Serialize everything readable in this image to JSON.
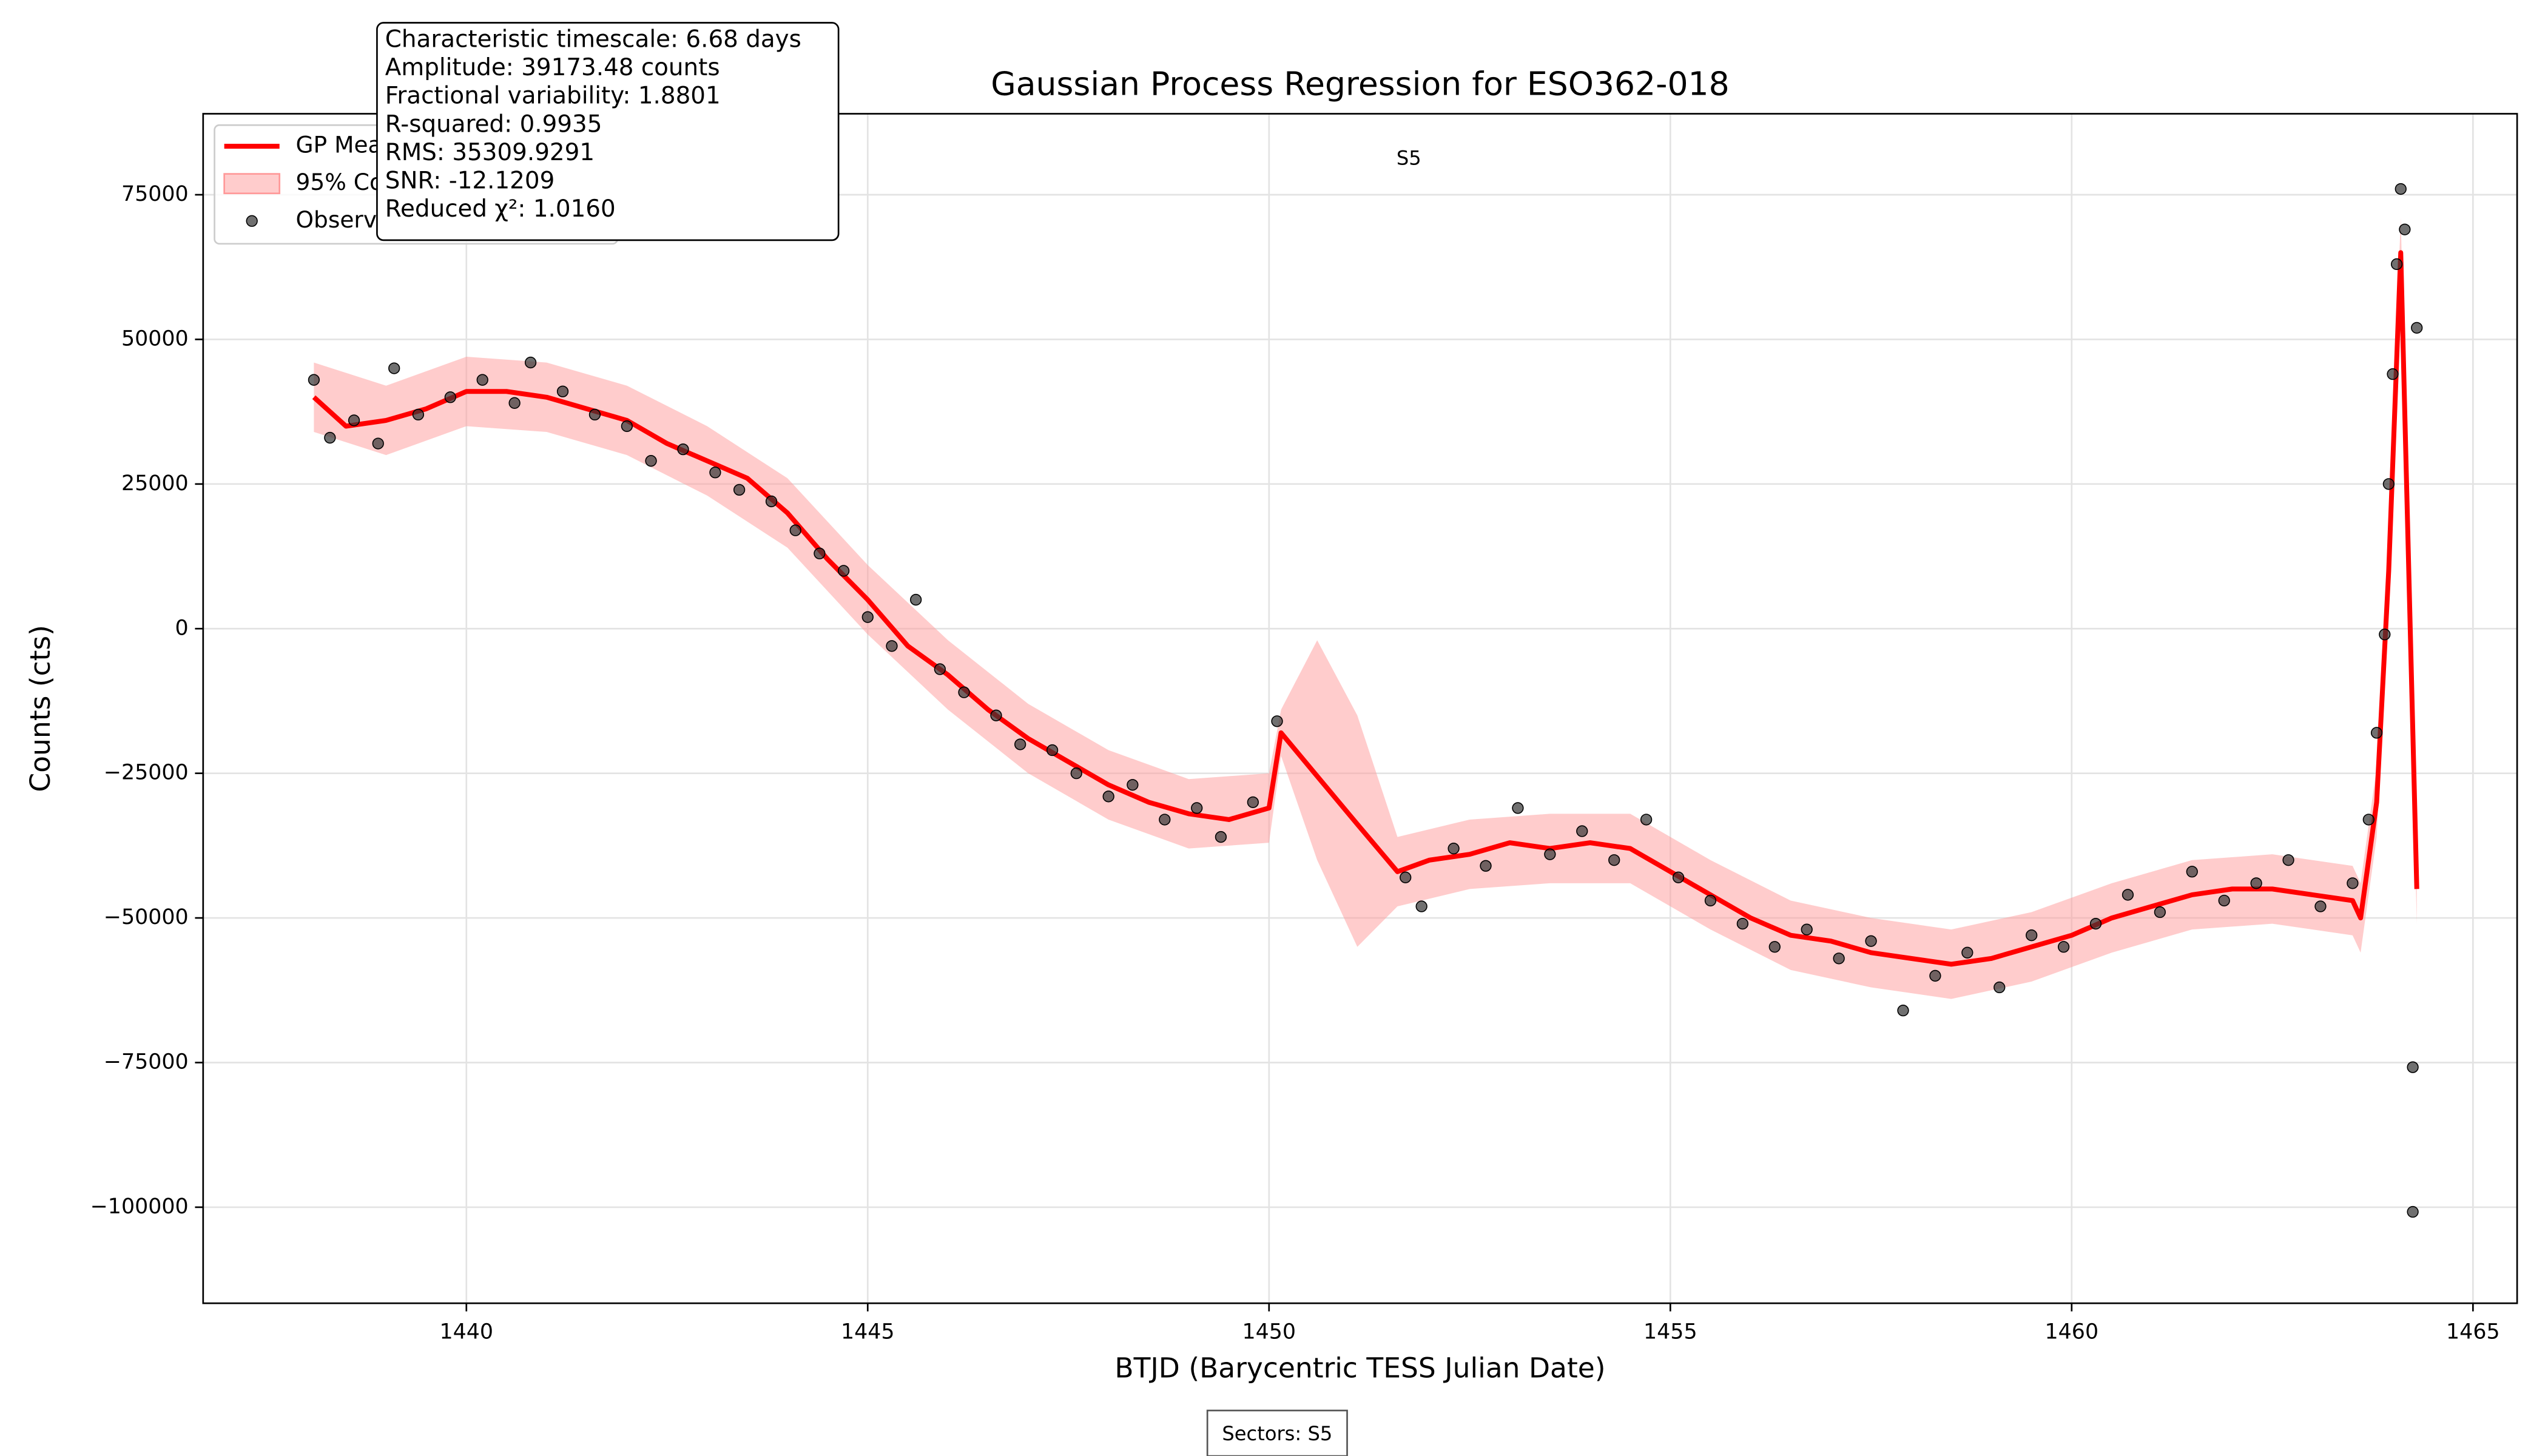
{
  "chart_data": {
    "type": "scatter",
    "title": "Gaussian Process Regression for ESO362-018",
    "x_label": "BTJD (Barycentric TESS Julian Date)",
    "y_label": "Counts (cts)",
    "xlim": [
      1436.72,
      1465.55
    ],
    "ylim": [
      -116600,
      89000
    ],
    "xticks": [
      1440,
      1445,
      1450,
      1455,
      1460,
      1465
    ],
    "yticks": [
      {
        "value": -100000,
        "label": "−100000"
      },
      {
        "value": -75000,
        "label": "−75000"
      },
      {
        "value": -50000,
        "label": "−50000"
      },
      {
        "value": -25000,
        "label": "−25000"
      },
      0,
      25000,
      50000,
      75000
    ],
    "grid": true,
    "legend": "upper left",
    "sector_label": "S5",
    "footer": "Sectors: S5",
    "annotation_lines": [
      "Characteristic timescale: 6.68 days",
      "Amplitude: 39173.48 counts",
      "Fractional variability: 1.8801",
      "R-squared: 0.9935",
      "RMS: 35309.9291",
      "SNR: -12.1209",
      "Reduced χ²: 1.0160"
    ],
    "series": [
      {
        "name": "GP Mean",
        "color": "#ff0000",
        "x": [
          1438.1,
          1438.5,
          1439,
          1439.5,
          1440,
          1440.5,
          1441,
          1441.5,
          1442,
          1442.5,
          1443,
          1443.5,
          1444,
          1444.5,
          1445,
          1445.5,
          1446,
          1446.5,
          1447,
          1447.5,
          1448,
          1448.5,
          1449,
          1449.5,
          1450,
          1450.15,
          1450.6,
          1451.1,
          1451.6,
          1452,
          1452.5,
          1453,
          1453.5,
          1454,
          1454.5,
          1455,
          1455.5,
          1456,
          1456.5,
          1457,
          1457.5,
          1458,
          1458.5,
          1459,
          1459.5,
          1460,
          1460.5,
          1461,
          1461.5,
          1462,
          1462.5,
          1463,
          1463.5,
          1463.6,
          1463.8,
          1463.95,
          1464.1,
          1464.3
        ],
        "values": [
          40000,
          35000,
          36000,
          38000,
          41000,
          41000,
          40000,
          38000,
          36000,
          32000,
          29000,
          26000,
          20000,
          12000,
          5000,
          -3000,
          -8000,
          -14000,
          -19000,
          -23000,
          -27000,
          -30000,
          -32000,
          -33000,
          -31000,
          -18000,
          -25500,
          -33800,
          -42000,
          -40000,
          -39000,
          -37000,
          -38000,
          -37000,
          -38000,
          -42000,
          -46000,
          -50000,
          -53000,
          -54000,
          -56000,
          -57000,
          -58000,
          -57000,
          -55000,
          -53000,
          -50000,
          -48000,
          -46000,
          -45000,
          -45000,
          -46000,
          -47000,
          -50000,
          -30000,
          10000,
          65000,
          -45000
        ]
      },
      {
        "name": "95% Confidence Interval",
        "color": "#ff9999",
        "x": [
          1438.1,
          1439,
          1440,
          1441,
          1442,
          1443,
          1444,
          1445,
          1446,
          1447,
          1448,
          1449,
          1450,
          1450.15,
          1450.6,
          1451.1,
          1451.6,
          1452.5,
          1453.5,
          1454.5,
          1455.5,
          1456.5,
          1457.5,
          1458.5,
          1459.5,
          1460.5,
          1461.5,
          1462.5,
          1463.5,
          1463.6,
          1463.8,
          1463.95,
          1464.1,
          1464.3
        ],
        "upper": [
          46000,
          42000,
          47000,
          46000,
          42000,
          35000,
          26000,
          11000,
          -2000,
          -13000,
          -21000,
          -26000,
          -25000,
          -14000,
          -2000,
          -15000,
          -36000,
          -33000,
          -32000,
          -32000,
          -40000,
          -47000,
          -50000,
          -52000,
          -49000,
          -44000,
          -40000,
          -39000,
          -41000,
          -44000,
          -24000,
          16000,
          71000,
          -39000
        ],
        "lower": [
          34000,
          30000,
          35000,
          34000,
          30000,
          23000,
          14000,
          -1000,
          -14000,
          -25000,
          -33000,
          -38000,
          -37000,
          -22000,
          -40000,
          -55000,
          -48000,
          -45000,
          -44000,
          -44000,
          -52000,
          -59000,
          -62000,
          -64000,
          -61000,
          -56000,
          -52000,
          -51000,
          -53000,
          -56000,
          -36000,
          4000,
          59000,
          -51000
        ]
      },
      {
        "name": "Observations",
        "color": "#333333",
        "x": [
          1438.1,
          1438.3,
          1438.6,
          1438.9,
          1439.1,
          1439.4,
          1439.8,
          1440.2,
          1440.6,
          1440.8,
          1441.2,
          1441.6,
          1442.0,
          1442.3,
          1442.7,
          1443.1,
          1443.4,
          1443.8,
          1444.1,
          1444.4,
          1444.7,
          1445.0,
          1445.3,
          1445.6,
          1445.9,
          1446.2,
          1446.6,
          1446.9,
          1447.3,
          1447.6,
          1448.0,
          1448.3,
          1448.7,
          1449.1,
          1449.4,
          1449.8,
          1450.1,
          1451.7,
          1451.9,
          1452.3,
          1452.7,
          1453.1,
          1453.5,
          1453.9,
          1454.3,
          1454.7,
          1455.1,
          1455.5,
          1455.9,
          1456.3,
          1456.7,
          1457.1,
          1457.5,
          1457.9,
          1458.3,
          1458.7,
          1459.1,
          1459.5,
          1459.9,
          1460.3,
          1460.7,
          1461.1,
          1461.5,
          1461.9,
          1462.3,
          1462.7,
          1463.1,
          1463.5,
          1463.7,
          1463.8,
          1463.9,
          1463.95,
          1464.0,
          1464.05,
          1464.1,
          1464.15,
          1464.3,
          1464.25,
          1464.25
        ],
        "values": [
          43000,
          33000,
          36000,
          32000,
          45000,
          37000,
          40000,
          43000,
          39000,
          46000,
          41000,
          37000,
          35000,
          29000,
          31000,
          27000,
          24000,
          22000,
          17000,
          13000,
          10000,
          2000,
          -3000,
          5000,
          -7000,
          -11000,
          -15000,
          -20000,
          -21000,
          -25000,
          -29000,
          -27000,
          -33000,
          -31000,
          -36000,
          -30000,
          -16000,
          -43000,
          -48000,
          -38000,
          -41000,
          -31000,
          -39000,
          -35000,
          -40000,
          -33000,
          -43000,
          -47000,
          -51000,
          -55000,
          -52000,
          -57000,
          -54000,
          -66000,
          -60000,
          -56000,
          -62000,
          -53000,
          -55000,
          -51000,
          -46000,
          -49000,
          -42000,
          -47000,
          -44000,
          -40000,
          -48000,
          -44000,
          -33000,
          -18000,
          -1000,
          25000,
          44000,
          63000,
          76000,
          69000,
          52000,
          -75800,
          -100800
        ]
      }
    ]
  }
}
